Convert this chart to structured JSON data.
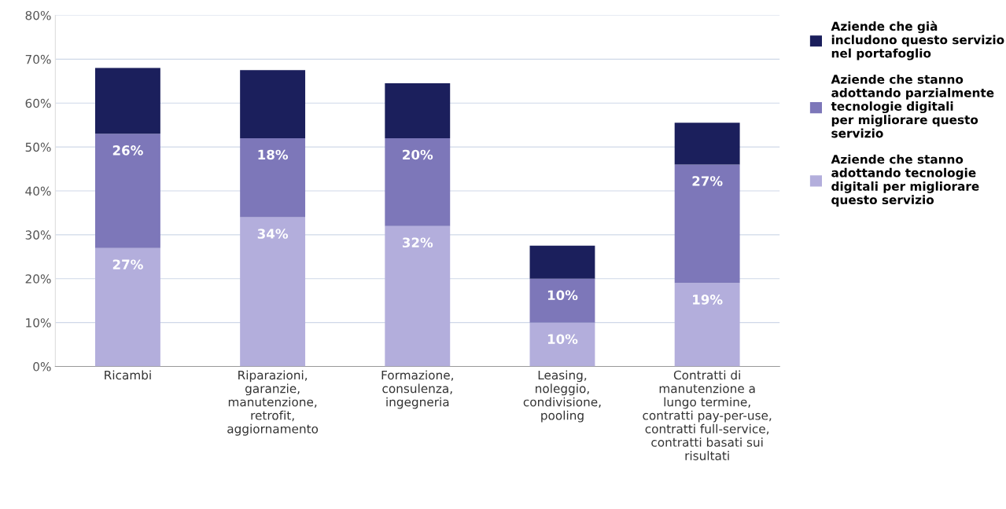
{
  "chart_data": {
    "type": "bar",
    "stacked": true,
    "categories": [
      "Ricambi",
      "Riparazioni,\ngaranzie,\nmanutenzione,\nretrofit,\naggiornamento",
      "Formazione,\nconsulenza,\ningegneria",
      "Leasing,\nnoleggio,\ncondivisione,\npooling",
      "Contratti di\nmanutenzione a\nlungo termine,\ncontratti pay-per-use,\ncontratti full-service,\ncontratti basati sui\nrisultati"
    ],
    "series": [
      {
        "name": "Aziende che stanno\nadottando tecnologie\ndigitali per migliorare\nquesto servizio",
        "color": "#b3aedc",
        "values": [
          27,
          34,
          32,
          10,
          19
        ],
        "value_labels": [
          "27%",
          "34%",
          "32%",
          "10%",
          "19%"
        ]
      },
      {
        "name": "Aziende che stanno\nadottando parzialmente\ntecnologie digitali\nper migliorare questo\nservizio",
        "color": "#7d77b9",
        "values": [
          26,
          18,
          20,
          10,
          27
        ],
        "value_labels": [
          "26%",
          "18%",
          "20%",
          "10%",
          "27%"
        ]
      },
      {
        "name": "Aziende che già\nincludono questo servizio\nnel portafoglio",
        "color": "#1b1f5c",
        "values": [
          15,
          15.5,
          12.5,
          7.5,
          9.5
        ]
      }
    ],
    "ylim": [
      0,
      80
    ],
    "yticks": [
      {
        "value": 0,
        "label": "0%"
      },
      {
        "value": 10,
        "label": "10%"
      },
      {
        "value": 20,
        "label": "20%"
      },
      {
        "value": 30,
        "label": "30%"
      },
      {
        "value": 40,
        "label": "40%"
      },
      {
        "value": 50,
        "label": "50%"
      },
      {
        "value": 60,
        "label": "60%"
      },
      {
        "value": 70,
        "label": "70%"
      },
      {
        "value": 80,
        "label": "80%"
      }
    ],
    "grid": "y",
    "legend": "top right"
  }
}
